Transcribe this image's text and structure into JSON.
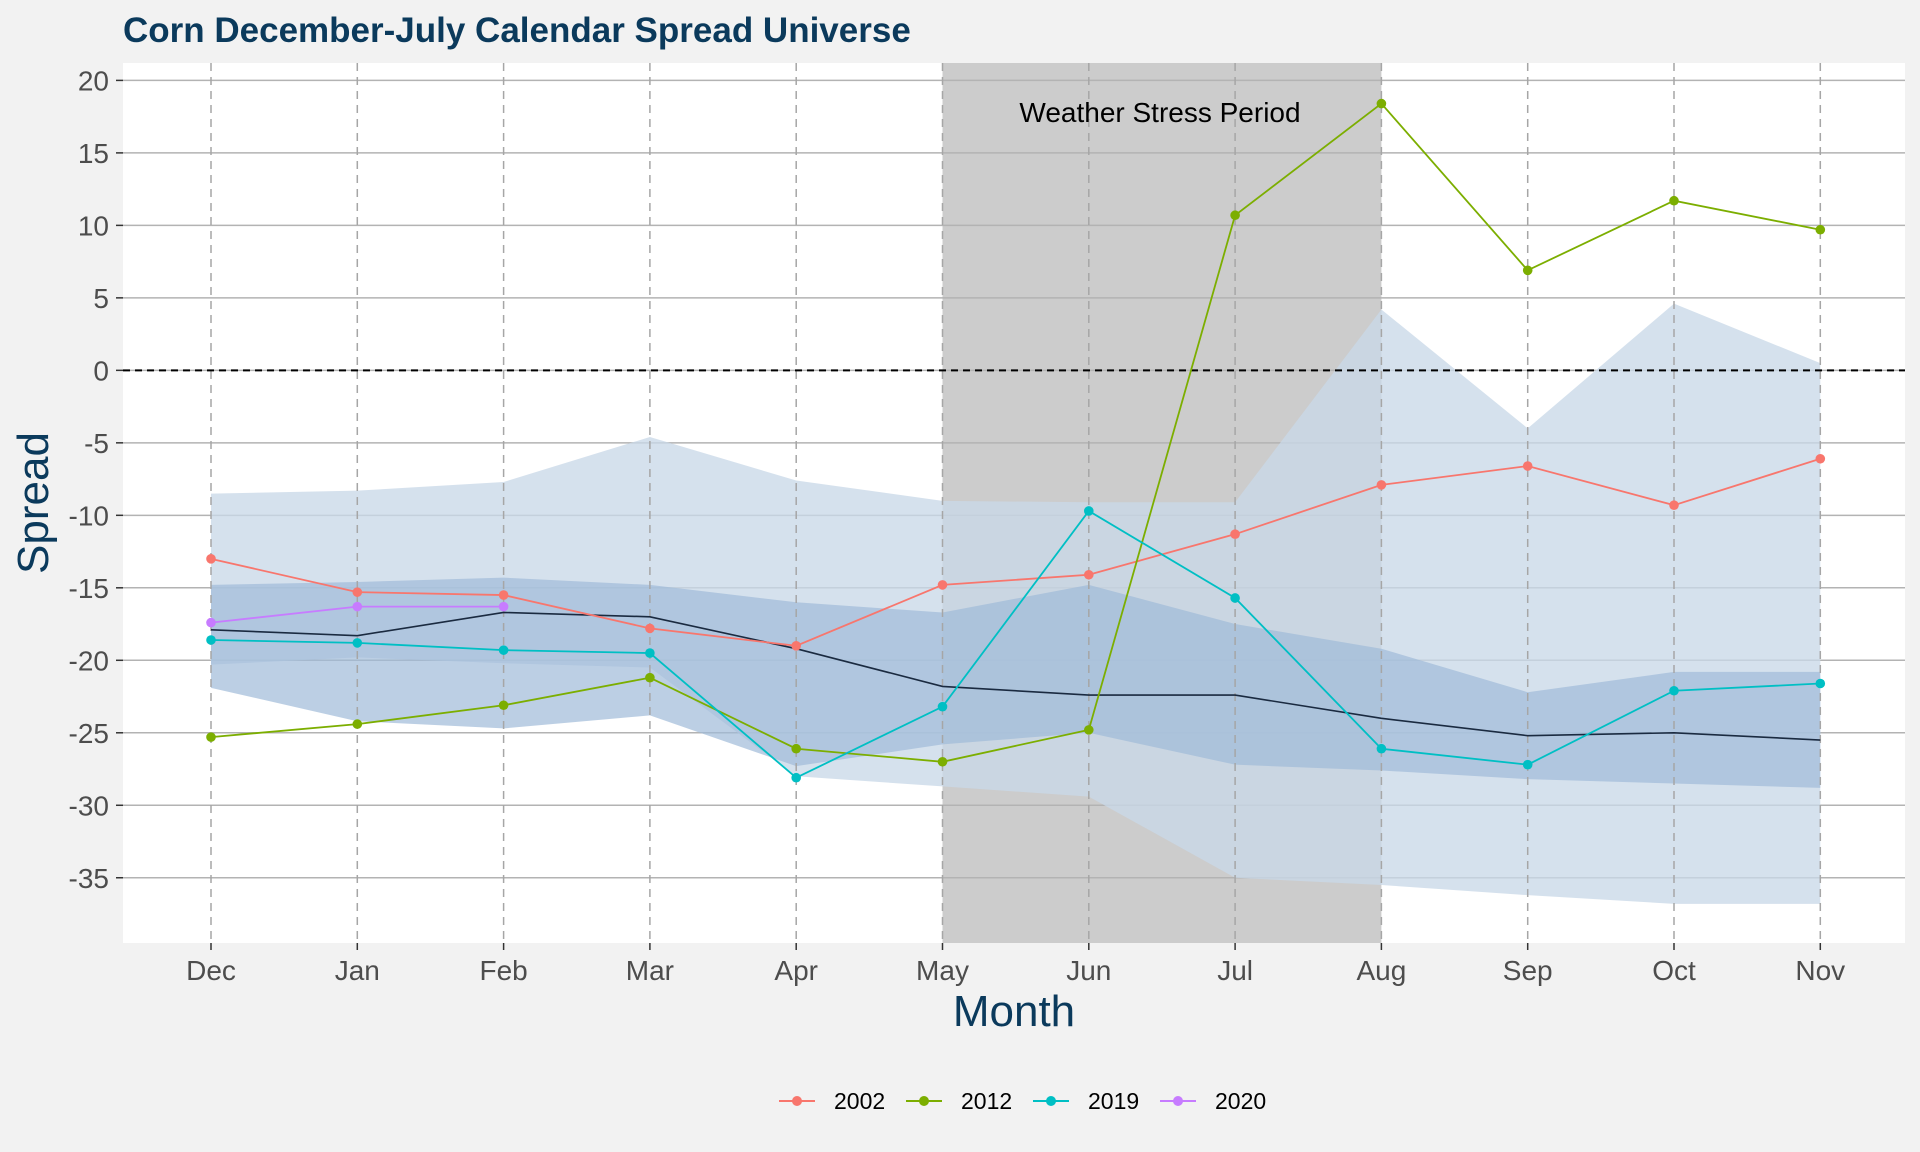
{
  "chart_data": {
    "type": "line",
    "title": "Corn December-July Calendar Spread Universe",
    "xlabel": "Month",
    "ylabel": "Spread",
    "categories": [
      "Dec",
      "Jan",
      "Feb",
      "Mar",
      "Apr",
      "May",
      "Jun",
      "Jul",
      "Aug",
      "Sep",
      "Oct",
      "Nov"
    ],
    "ylim": [
      -39.5,
      21.2
    ],
    "yticks": [
      20,
      15,
      10,
      5,
      0,
      -5,
      -10,
      -15,
      -20,
      -25,
      -30,
      -35
    ],
    "ytick_labels": [
      "20",
      "15",
      "10",
      "5",
      "0",
      "-5",
      "-10",
      "-15",
      "-20",
      "-25",
      "-30",
      "-35"
    ],
    "zero_line": 0,
    "grid": "on",
    "legend_position": "bottom",
    "shaded_period": {
      "label": "Weather Stress Period",
      "start": "May",
      "end": "Aug",
      "color": "#cccccc"
    },
    "outer_band": {
      "color": "#c9d8e8",
      "upper": [
        -8.5,
        -8.3,
        -7.7,
        -4.6,
        -7.6,
        -9.0,
        -9.1,
        -9.1,
        4.2,
        -4.0,
        4.6,
        0.5
      ],
      "lower": [
        -20.3,
        -19.8,
        -20.2,
        -20.5,
        -28.0,
        -28.7,
        -29.4,
        -35.0,
        -35.5,
        -36.2,
        -36.8,
        -36.8
      ]
    },
    "inner_band": {
      "color": "#9fbbd8",
      "upper": [
        -14.8,
        -14.6,
        -14.3,
        -14.8,
        -16.0,
        -16.7,
        -14.8,
        -17.5,
        -19.2,
        -22.2,
        -20.8,
        -20.8
      ],
      "lower": [
        -21.9,
        -24.2,
        -24.7,
        -23.8,
        -27.3,
        -25.8,
        -25.0,
        -27.2,
        -27.6,
        -28.2,
        -28.5,
        -28.8
      ]
    },
    "median_line": {
      "color": "#1a2a40",
      "values": [
        -17.9,
        -18.3,
        -16.7,
        -17.0,
        -19.2,
        -21.8,
        -22.4,
        -22.4,
        -24.0,
        -25.2,
        -25.0,
        -25.5
      ]
    },
    "series": [
      {
        "name": "2002",
        "color": "#f8766d",
        "values": [
          -13.0,
          -15.3,
          -15.5,
          -17.8,
          -19.0,
          -14.8,
          -14.1,
          -11.3,
          -7.9,
          -6.6,
          -9.3,
          -6.1
        ]
      },
      {
        "name": "2012",
        "color": "#7cae00",
        "values": [
          -25.3,
          -24.4,
          -23.1,
          -21.2,
          -26.1,
          -27.0,
          -24.8,
          10.7,
          18.4,
          6.9,
          11.7,
          9.7
        ]
      },
      {
        "name": "2019",
        "color": "#00bfc4",
        "values": [
          -18.6,
          -18.8,
          -19.3,
          -19.5,
          -28.1,
          -23.2,
          -9.7,
          -15.7,
          -26.1,
          -27.2,
          -22.1,
          -21.6
        ]
      },
      {
        "name": "2020",
        "color": "#c77cff",
        "values": [
          -17.4,
          -16.3,
          -16.3,
          null,
          null,
          null,
          null,
          null,
          null,
          null,
          null,
          null
        ]
      }
    ]
  }
}
